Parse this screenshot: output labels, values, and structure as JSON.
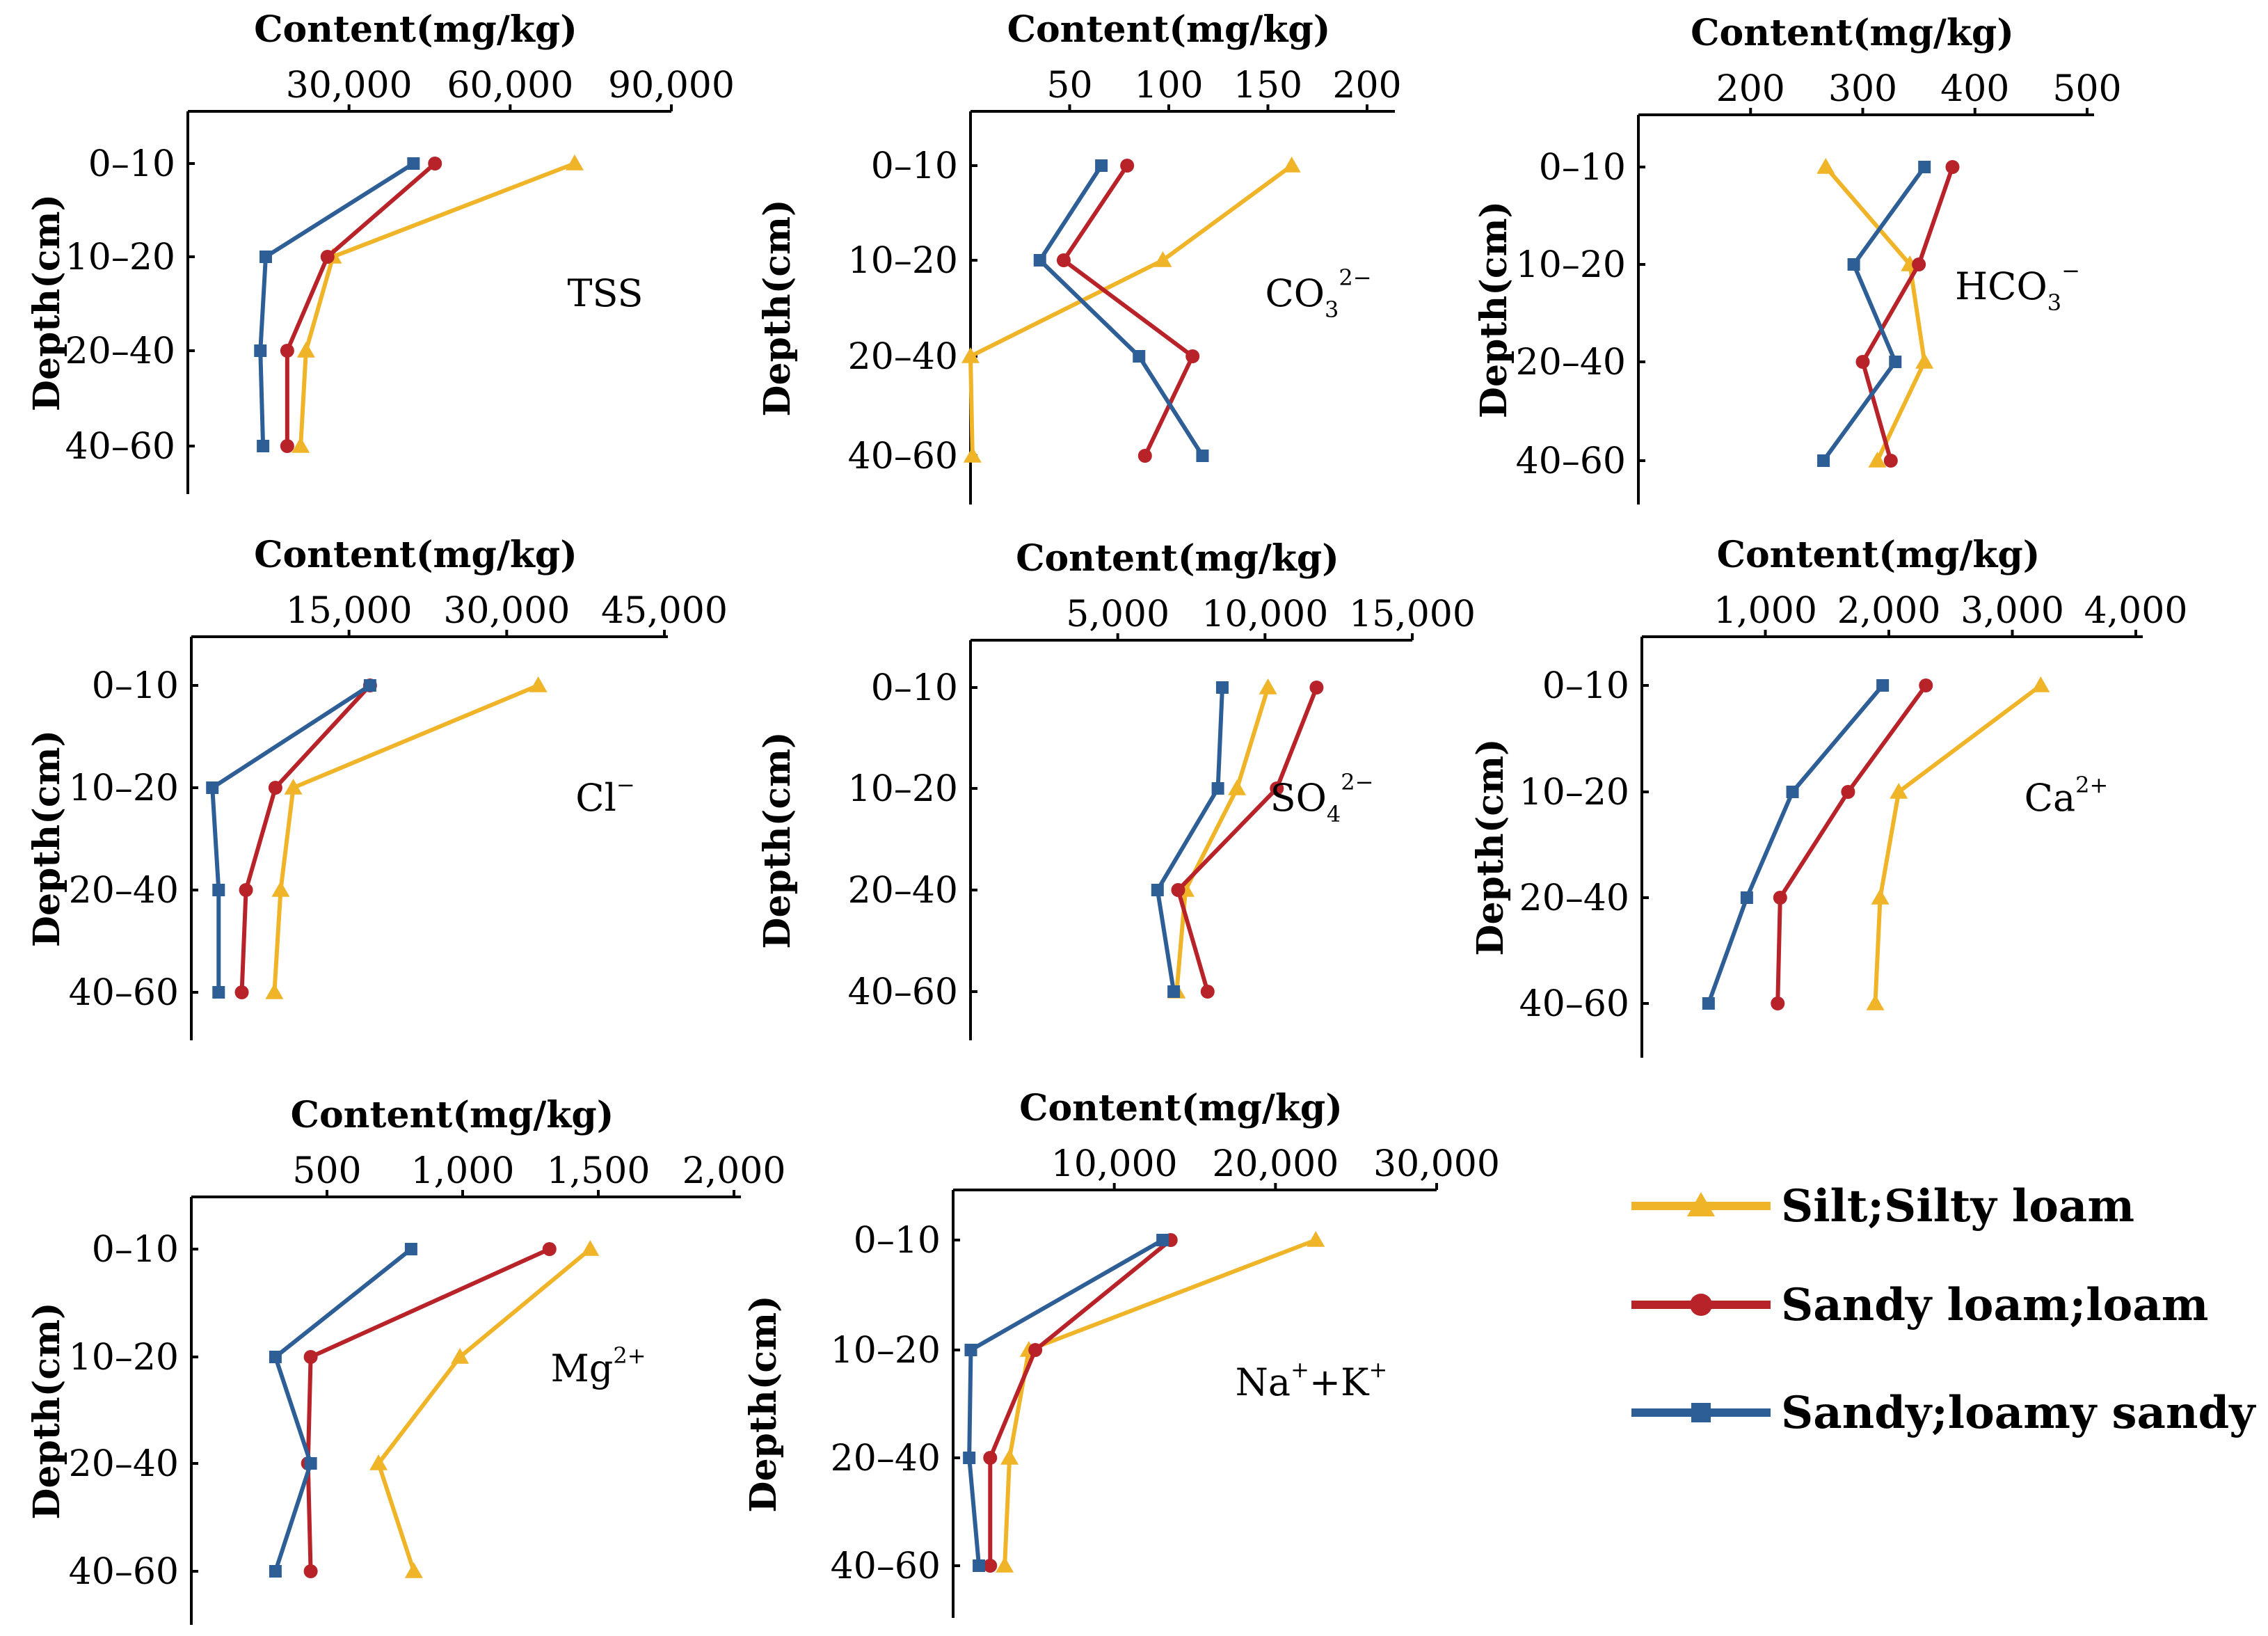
{
  "chart_data": {
    "series_styles": [
      {
        "name": "Silt;Silty loam",
        "color": "#F0B429",
        "marker": "triangle"
      },
      {
        "name": "Sandy loam;loam",
        "color": "#B8232A",
        "marker": "circle"
      },
      {
        "name": "Sandy;loamy sandy",
        "color": "#2E5E96",
        "marker": "square"
      }
    ],
    "legend": {
      "items": [
        "Silt;Silty loam",
        "Sandy loam;loam",
        "Sandy;loamy sandy"
      ]
    },
    "panels": [
      {
        "label": "TSS",
        "sup": "",
        "sub": "",
        "type": "line",
        "orientation": "depth-profile",
        "xlabel": "Content(mg/kg)",
        "ylabel": "Depth(cm)",
        "xlim": [
          0,
          90000
        ],
        "xticks": [
          30000,
          60000,
          90000
        ],
        "xtick_labels": [
          "30,000",
          "60,000",
          "90,000"
        ],
        "categories": [
          "0–10",
          "10–20",
          "20–40",
          "40–60"
        ],
        "series": [
          {
            "name": "Silt;Silty loam",
            "values": [
              72000,
              27000,
              22000,
              21000
            ]
          },
          {
            "name": "Sandy loam;loam",
            "values": [
              46000,
              26000,
              18500,
              18500
            ]
          },
          {
            "name": "Sandy;loamy sandy",
            "values": [
              42000,
              14500,
              13500,
              14000
            ]
          }
        ]
      },
      {
        "label": "CO",
        "sup": "2−",
        "sub": "3",
        "type": "line",
        "orientation": "depth-profile",
        "xlabel": "Content(mg/kg)",
        "ylabel": "Depth(cm)",
        "xlim": [
          0,
          200
        ],
        "xticks": [
          50,
          100,
          150,
          200
        ],
        "xtick_labels": [
          "50",
          "100",
          "150",
          "200"
        ],
        "categories": [
          "0–10",
          "10–20",
          "20–40",
          "40–60"
        ],
        "series": [
          {
            "name": "Silt;Silty loam",
            "values": [
              162,
              97,
              0,
              1
            ]
          },
          {
            "name": "Sandy loam;loam",
            "values": [
              79,
              47,
              112,
              88
            ]
          },
          {
            "name": "Sandy;loamy sandy",
            "values": [
              66,
              35,
              85,
              117
            ]
          }
        ]
      },
      {
        "label": "HCO",
        "sup": "−",
        "sub": "3",
        "type": "line",
        "orientation": "depth-profile",
        "xlabel": "Content(mg/kg)",
        "ylabel": "Depth(cm)",
        "xlim": [
          100,
          500
        ],
        "xticks": [
          200,
          300,
          400,
          500
        ],
        "xtick_labels": [
          "200",
          "300",
          "400",
          "500"
        ],
        "categories": [
          "0–10",
          "10–20",
          "20–40",
          "40–60"
        ],
        "series": [
          {
            "name": "Silt;Silty loam",
            "values": [
              267,
              342,
              355,
              313
            ]
          },
          {
            "name": "Sandy loam;loam",
            "values": [
              380,
              350,
              300,
              325
            ]
          },
          {
            "name": "Sandy;loamy sandy",
            "values": [
              355,
              292,
              329,
              265
            ]
          }
        ]
      },
      {
        "label": "Cl",
        "sup": "−",
        "sub": "",
        "type": "line",
        "orientation": "depth-profile",
        "xlabel": "Content(mg/kg)",
        "ylabel": "Depth(cm)",
        "xlim": [
          0,
          45000
        ],
        "xticks": [
          15000,
          30000,
          45000
        ],
        "xtick_labels": [
          "15,000",
          "30,000",
          "45,000"
        ],
        "categories": [
          "0–10",
          "10–20",
          "20–40",
          "40–60"
        ],
        "series": [
          {
            "name": "Silt;Silty loam",
            "values": [
              33000,
              9700,
              8500,
              7900
            ]
          },
          {
            "name": "Sandy loam;loam",
            "values": [
              17000,
              8000,
              5200,
              4800
            ]
          },
          {
            "name": "Sandy;loamy sandy",
            "values": [
              17000,
              2000,
              2600,
              2600
            ]
          }
        ]
      },
      {
        "label": "SO",
        "sup": "2−",
        "sub": "4",
        "type": "line",
        "orientation": "depth-profile",
        "xlabel": "Content(mg/kg)",
        "ylabel": "Depth(cm)",
        "xlim": [
          0,
          15000
        ],
        "xticks": [
          5000,
          10000,
          15000
        ],
        "xtick_labels": [
          "5,000",
          "10,000",
          "15,000"
        ],
        "categories": [
          "0–10",
          "10–20",
          "20–40",
          "40–60"
        ],
        "series": [
          {
            "name": "Silt;Silty loam",
            "values": [
              10100,
              9050,
              7300,
              7000
            ]
          },
          {
            "name": "Sandy loam;loam",
            "values": [
              11750,
              10400,
              7050,
              8050
            ]
          },
          {
            "name": "Sandy;loamy sandy",
            "values": [
              8550,
              8400,
              6350,
              6900
            ]
          }
        ]
      },
      {
        "label": "Ca",
        "sup": "2+",
        "sub": "",
        "type": "line",
        "orientation": "depth-profile",
        "xlabel": "Content(mg/kg)",
        "ylabel": "Depth(cm)",
        "xlim": [
          0,
          4000
        ],
        "xticks": [
          1000,
          2000,
          3000,
          4000
        ],
        "xtick_labels": [
          "1,000",
          "2,000",
          "3,000",
          "4,000"
        ],
        "categories": [
          "0–10",
          "10–20",
          "20–40",
          "40–60"
        ],
        "series": [
          {
            "name": "Silt;Silty loam",
            "values": [
              3230,
              2080,
              1930,
              1890
            ]
          },
          {
            "name": "Sandy loam;loam",
            "values": [
              2300,
              1670,
              1120,
              1100
            ]
          },
          {
            "name": "Sandy;loamy sandy",
            "values": [
              1950,
              1220,
              850,
              540
            ]
          }
        ]
      },
      {
        "label": "Mg",
        "sup": "2+",
        "sub": "",
        "type": "line",
        "orientation": "depth-profile",
        "xlabel": "Content(mg/kg)",
        "ylabel": "Depth(cm)",
        "xlim": [
          0,
          2000
        ],
        "xticks": [
          500,
          1000,
          1500,
          2000
        ],
        "xtick_labels": [
          "500",
          "1,000",
          "1,500",
          "2,000"
        ],
        "categories": [
          "0–10",
          "10–20",
          "20–40",
          "40–60"
        ],
        "series": [
          {
            "name": "Silt;Silty loam",
            "values": [
              1470,
              990,
              690,
              820
            ]
          },
          {
            "name": "Sandy loam;loam",
            "values": [
              1320,
              440,
              430,
              440
            ]
          },
          {
            "name": "Sandy;loamy sandy",
            "values": [
              810,
              310,
              440,
              310
            ]
          }
        ]
      },
      {
        "label": "Na",
        "sup": "+",
        "sub": "",
        "label2": "+K",
        "sup2": "+",
        "type": "line",
        "orientation": "depth-profile",
        "xlabel": "Content(mg/kg)",
        "ylabel": "Depth(cm)",
        "xlim": [
          0,
          30000
        ],
        "xticks": [
          10000,
          20000,
          30000
        ],
        "xtick_labels": [
          "10,000",
          "20,000",
          "30,000"
        ],
        "categories": [
          "0–10",
          "10–20",
          "20–40",
          "40–60"
        ],
        "series": [
          {
            "name": "Silt;Silty loam",
            "values": [
              22500,
              4700,
              3500,
              3200
            ]
          },
          {
            "name": "Sandy loam;loam",
            "values": [
              13500,
              5100,
              2300,
              2300
            ]
          },
          {
            "name": "Sandy;loamy sandy",
            "values": [
              13000,
              1100,
              1000,
              1600
            ]
          }
        ]
      }
    ]
  }
}
